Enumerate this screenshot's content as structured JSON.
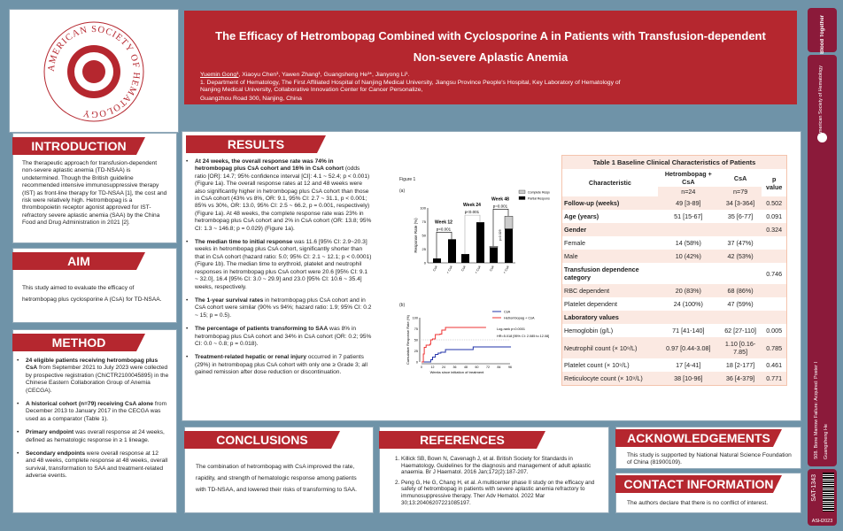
{
  "logo": {
    "text": "AMERICAN SOCIETY OF HEMATOLOGY"
  },
  "header": {
    "title_line1": "The Efficacy of Hetrombopag Combined with Cyclosporine A in Patients with Transfusion-dependent",
    "title_line2": "Non-severe Aplastic Anemia",
    "presenter": "Yuemin Gong¹",
    "authors": ", Xiaoyu Chen¹, Yawen Zhang¹, Guangsheng He¹*, Jianyong Li¹.",
    "affil1": "1. Department of Hematology, The First Affiliated Hospital of Nanjing Medical University, Jiangsu Province People's Hospital, Key Laboratory of Hematology of Nanjing Medical University, Collaborative Innovation Center for Cancer Personalize,",
    "affil2": "Guangzhou Road 300, Nanjing, China"
  },
  "introduction": {
    "heading": "INTRODUCTION",
    "text": "The therapeutic approach for transfusion-dependent non-severe aplastic anemia (TD-NSAA) is undetermined. Though the British guideline recommended intensive immunosuppressive therapy (IST) as front-line therapy for TD-NSAA [1], the cost and risk were relatively high. Hetrombopag is a thrombopoietin receptor agonist approved for IST-refractory severe aplastic anemia (SAA) by the China Food and Drug Administration in 2021 [2]."
  },
  "aim": {
    "heading": "AIM",
    "text": "This study aimed to evaluate the efficacy of hetrombopag plus cyclosporine A (CsA) for TD-NSAA."
  },
  "method": {
    "heading": "METHOD",
    "items": [
      {
        "bold": "24 eligible patients receiving hetrombopag plus CsA",
        "rest": " from September 2021 to July 2023 were collected by prospective registration (ChiCTR2100045895) in the Chinese Eastern Collaboration Group of Anemia (CECGA)."
      },
      {
        "bold": "A historical cohort (n=79) receiving CsA alone",
        "rest": " from December 2013 to January 2017 in the CECGA was used as a comparator (Table 1)."
      },
      {
        "bold": "Primary endpoint",
        "rest": " was overall response at 24 weeks, defined as hematologic response in ≥ 1 lineage."
      },
      {
        "bold": "Secondary endpoints",
        "rest": " were overall response at 12 and 48 weeks, complete response at 48 weeks, overall survival, transformation to SAA and treatment-related adverse events."
      }
    ]
  },
  "results": {
    "heading": "RESULTS",
    "items": [
      {
        "bold": "At 24 weeks, the overall response rate was 74% in hetrombopag plus CsA cohort and 16% in CsA cohort",
        "rest": " (odds ratio [OR]: 14.7; 95% confidence interval [CI]: 4.1 ~ 52.4; p < 0.001) (Figure 1a). The overall response rates at 12 and 48 weeks were also significantly higher in hetrombopag plus CsA cohort than those in CsA cohort (43% vs 8%, OR: 9.1, 95% CI: 2.7 ~ 31.1, p < 0.001; 85% vs 30%, OR: 13.0, 95% CI: 2.5 ~ 66.2, p = 0.001, respectively) (Figure 1a). At 48 weeks, the complete response rate was 23% in hetrombopag plus CsA cohort and 2% in CsA cohort (OR: 13.8; 95% CI: 1.3 ~ 146.8; p = 0.029) (Figure 1a)."
      },
      {
        "bold": "The median time to initial response",
        "rest": " was 11.6 [95% CI: 2.9~20.3] weeks in hetrombopag plus CsA cohort, significantly shorter than that in CsA cohort (hazard ratio: 5.0; 95% CI: 2.1 ~ 12.1; p < 0.0001) (Figure 1b). The median time to erythroid, platelet and neutrophil responses in hetrombopag plus CsA cohort were 20.6 [95% CI: 9.1 ~ 32.0], 16.4 [95% CI: 3.0 ~ 29.9] and 23.0 [95% CI: 10.6 ~ 35.4] weeks, respectively."
      },
      {
        "bold": "The 1-year survival rates",
        "rest": " in hetrombopag plus CsA cohort and in CsA cohort were similar (90% vs 94%; hazard ratio: 1.9; 95% CI: 0.2 ~ 15; p = 0.5)."
      },
      {
        "bold": "The percentage of patients transforming to SAA",
        "rest": " was 8% in hetrombopag plus CsA cohort and 34% in CsA cohort (OR: 0.2; 95% CI: 0.0 ~ 0.8; p = 0.018)."
      },
      {
        "bold": "Treatment-related hepatic or renal injury",
        "rest": " occurred in 7 patients (29%) in hetrombopag plus CsA cohort with only one ≥ Grade 3; all gained remission after dose reduction or discontinuation."
      }
    ]
  },
  "figure": {
    "title": "Figure 1",
    "panel_a": "(a)",
    "panel_b": "(b)"
  },
  "chart_data": [
    {
      "type": "bar",
      "panel": "(a)",
      "ylabel": "Response Rate (%)",
      "ylim": [
        0,
        100
      ],
      "yticks": [
        0,
        25,
        50,
        75,
        100
      ],
      "categories": [
        "CsA",
        "Hetrombopag + CsA",
        "CsA",
        "Hetrombopag + CsA",
        "CsA",
        "Hetrombopag + CsA"
      ],
      "groups": [
        {
          "label": "Week 12",
          "p": "p<0.001"
        },
        {
          "label": "Week 24",
          "p": "p<0.001"
        },
        {
          "label": "Week 48",
          "p": "p=0.001",
          "p_cr": "p=0.029"
        }
      ],
      "series": [
        {
          "name": "Partial Response",
          "color": "#000000",
          "values": [
            8,
            43,
            16,
            74,
            28,
            62
          ]
        },
        {
          "name": "Complete Response",
          "color": "#cccccc",
          "values": [
            0,
            0,
            0,
            0,
            2,
            23
          ]
        }
      ],
      "legend": "top-right"
    },
    {
      "type": "line",
      "panel": "(b)",
      "xlabel": "Weeks since initiation of treatment",
      "ylabel": "Cumulative Response Rate (%)",
      "xlim": [
        0,
        96
      ],
      "ylim": [
        0,
        100
      ],
      "xticks": [
        0,
        12,
        24,
        36,
        48,
        60,
        72,
        84,
        96
      ],
      "yticks": [
        0,
        25,
        50,
        75,
        100
      ],
      "annotations": [
        "Log-rank p<0.0001",
        "HR=5.018 [95% CI: 2.085 to 12.08]"
      ],
      "legend": "top-right",
      "series": [
        {
          "name": "CsA",
          "color": "#2233aa",
          "x": [
            0,
            6,
            10,
            12,
            15,
            18,
            21,
            26,
            55,
            56,
            97
          ],
          "y": [
            0,
            0,
            5,
            11,
            17,
            20,
            22,
            28,
            28,
            34,
            34
          ]
        },
        {
          "name": "Hetrombopag + CsA",
          "color": "#ee3333",
          "x": [
            0,
            2,
            3,
            5,
            9,
            10,
            12,
            15,
            20,
            22,
            26,
            70
          ],
          "y": [
            0,
            18,
            33,
            38,
            40,
            50,
            52,
            62,
            63,
            72,
            78,
            78
          ]
        }
      ]
    }
  ],
  "table": {
    "title": "Table 1 Baseline Clinical Characteristics of Patients",
    "headers": {
      "char": "Characteristic",
      "het": "Hetrombopag + CsA",
      "csa": "CsA",
      "p": "p value",
      "n_het": "n=24",
      "n_csa": "n=79"
    },
    "rows": [
      {
        "label": "Follow-up (weeks)",
        "het": "49 [3-89]",
        "csa": "34 [3-364]",
        "p": "0.502",
        "type": "main"
      },
      {
        "label": "Age (years)",
        "het": "51 [15-67]",
        "csa": "35 [6-77]",
        "p": "0.091",
        "type": "main"
      },
      {
        "label": "Gender",
        "het": "",
        "csa": "",
        "p": "0.324",
        "type": "main"
      },
      {
        "label": "Female",
        "het": "14 (58%)",
        "csa": "37 (47%)",
        "p": "",
        "type": "sub"
      },
      {
        "label": "Male",
        "het": "10 (42%)",
        "csa": "42 (53%)",
        "p": "",
        "type": "sub"
      },
      {
        "label": "Transfusion dependence category",
        "het": "",
        "csa": "",
        "p": "0.746",
        "type": "main"
      },
      {
        "label": "RBC dependent",
        "het": "20 (83%)",
        "csa": "68 (86%)",
        "p": "",
        "type": "sub"
      },
      {
        "label": "Platelet dependent",
        "het": "24 (100%)",
        "csa": "47 (59%)",
        "p": "",
        "type": "sub"
      },
      {
        "label": "Laboratory values",
        "het": "",
        "csa": "",
        "p": "",
        "type": "main"
      },
      {
        "label": "Hemoglobin (g/L)",
        "het": "71 [41-140]",
        "csa": "62 [27-110]",
        "p": "0.005",
        "type": "lab"
      },
      {
        "label": "Neutrophil count (× 10⁹/L)",
        "het": "0.97 [0.44-3.08]",
        "csa": "1.10 [0.16-7.85]",
        "p": "0.785",
        "type": "lab"
      },
      {
        "label": "Platelet count (× 10⁹/L)",
        "het": "17 [4-41]",
        "csa": "18 [2-177]",
        "p": "0.461",
        "type": "lab"
      },
      {
        "label": "Reticulocyte count (× 10⁹/L)",
        "het": "38 [10-96]",
        "csa": "36 [4-379]",
        "p": "0.771",
        "type": "lab"
      }
    ]
  },
  "conclusions": {
    "heading": "CONCLUSIONS",
    "text": "The combination of hetrombopag with CsA improved the rate, rapidity, and strength of hematologic response among patients with TD-NSAA, and lowered their risks of transforming to SAA."
  },
  "references": {
    "heading": "REFERENCES",
    "items": [
      "Killick SB, Bown N, Cavenagh J, et al. British Society for Standards in Haematology. Guidelines for the diagnosis and management of adult aplastic anaemia. Br J Haematol. 2016 Jan;172(2):187-207.",
      "Peng G, He G, Chang H, et al. A multicenter phase II study on the efficacy and safety of hetrombopag in patients with severe aplastic anemia refractory to immunosuppressive therapy. Ther Adv Hematol. 2022 Mar 30;13:20406207221085197."
    ]
  },
  "acknowledgements": {
    "heading": "ACKNOWLEDGEMENTS",
    "text": "This study is supported by National Natural Science Foundation of China (81900109)."
  },
  "contact": {
    "heading": "CONTACT INFORMATION",
    "text": "The authors declare that there is no conflict of interest."
  },
  "sidebar": {
    "brand1": "Better Blood Together",
    "brand2": "American Society of Hematology",
    "session": "508. Bone Marrow Failure: Acquired: Poster I",
    "presenter": "Guangsheng He",
    "poster_id": "SAT-1343",
    "meeting": "ASH2023"
  },
  "colors": {
    "accent": "#b5272f",
    "background": "#6f93a8",
    "sidebar": "#8b1a3a"
  }
}
